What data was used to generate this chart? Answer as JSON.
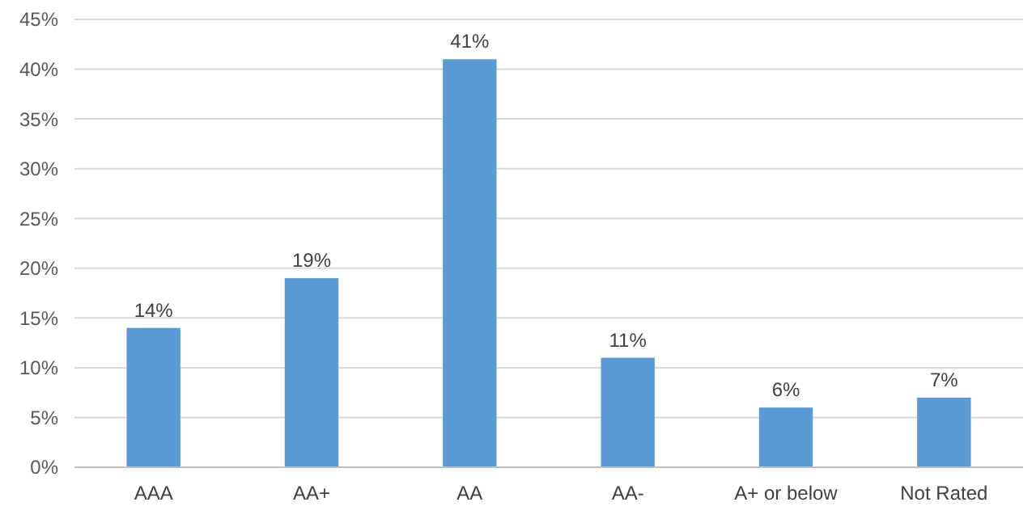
{
  "chart_data": {
    "type": "bar",
    "categories": [
      "AAA",
      "AA+",
      "AA",
      "AA-",
      "A+ or below",
      "Not Rated"
    ],
    "values": [
      14,
      19,
      41,
      11,
      6,
      7
    ],
    "color": "#5b9bd5",
    "data_labels": true,
    "value_labels": [
      "14%",
      "19%",
      "41%",
      "11%",
      "6%",
      "7%"
    ],
    "ylim": [
      0,
      45
    ],
    "yticks": [
      {
        "value": 0,
        "label": "0%"
      },
      {
        "value": 5,
        "label": "5%"
      },
      {
        "value": 10,
        "label": "10%"
      },
      {
        "value": 15,
        "label": "15%"
      },
      {
        "value": 20,
        "label": "20%"
      },
      {
        "value": 25,
        "label": "25%"
      },
      {
        "value": 30,
        "label": "30%"
      },
      {
        "value": 35,
        "label": "35%"
      },
      {
        "value": 40,
        "label": "40%"
      },
      {
        "value": 45,
        "label": "45%"
      }
    ],
    "grid": "y"
  }
}
